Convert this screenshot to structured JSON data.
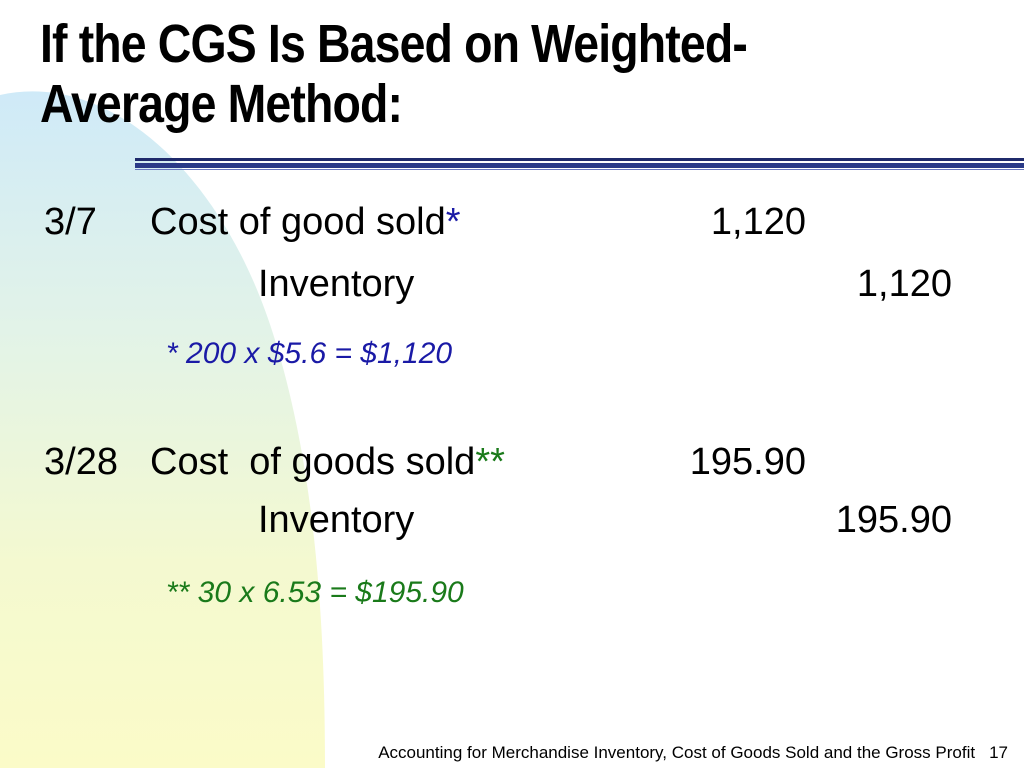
{
  "slide": {
    "title_line1": "If the CGS Is Based on Weighted-",
    "title_line2": "Average Method:",
    "colors": {
      "rule": "#1f2a6b",
      "note1": "#1a1aa6",
      "note2": "#1a7a1a",
      "bg_cyan": "#cfeaf8",
      "bg_yellow": "#fbfbc8"
    }
  },
  "entries": [
    {
      "date": "3/7",
      "debit_account": "Cost of good sold",
      "debit_marker": "*",
      "debit_amount": "1,120",
      "credit_account": "Inventory",
      "credit_amount": "1,120",
      "note": "* 200 x $5.6 = $1,120"
    },
    {
      "date": "3/28",
      "debit_account": "Cost  of goods sold",
      "debit_marker": "**",
      "debit_amount": "195.90",
      "credit_account": "Inventory",
      "credit_amount": "195.90",
      "note": "** 30 x 6.53 = $195.90"
    }
  ],
  "footer": {
    "text": "Accounting for Merchandise Inventory, Cost of Goods Sold and the Gross Profit",
    "page_number": "17"
  }
}
